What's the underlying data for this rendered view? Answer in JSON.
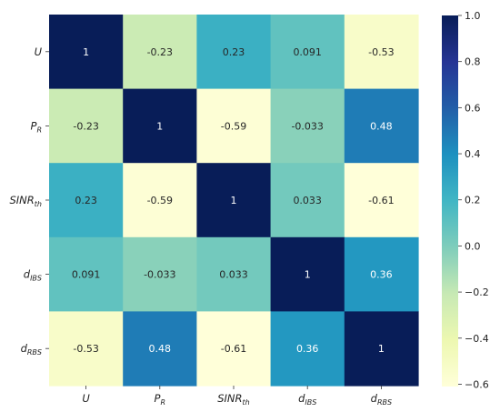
{
  "chart_data": {
    "type": "heatmap",
    "row_labels": [
      {
        "base": "U",
        "sub": ""
      },
      {
        "base": "P",
        "sub": "R"
      },
      {
        "base": "SINR",
        "sub": "th"
      },
      {
        "base": "d",
        "sub": "IBS"
      },
      {
        "base": "d",
        "sub": "RBS"
      }
    ],
    "col_labels": [
      {
        "base": "U",
        "sub": ""
      },
      {
        "base": "P",
        "sub": "R"
      },
      {
        "base": "SINR",
        "sub": "th"
      },
      {
        "base": "d",
        "sub": "IBS"
      },
      {
        "base": "d",
        "sub": "RBS"
      }
    ],
    "values": [
      [
        1,
        -0.23,
        0.23,
        0.091,
        -0.53
      ],
      [
        -0.23,
        1,
        -0.59,
        -0.033,
        0.48
      ],
      [
        0.23,
        -0.59,
        1,
        0.033,
        -0.61
      ],
      [
        0.091,
        -0.033,
        0.033,
        1,
        0.36
      ],
      [
        -0.53,
        0.48,
        -0.61,
        0.36,
        1
      ]
    ],
    "cell_text": [
      [
        "1",
        "-0.23",
        "0.23",
        "0.091",
        "-0.53"
      ],
      [
        "-0.23",
        "1",
        "-0.59",
        "-0.033",
        "0.48"
      ],
      [
        "0.23",
        "-0.59",
        "1",
        "0.033",
        "-0.61"
      ],
      [
        "0.091",
        "-0.033",
        "0.033",
        "1",
        "0.36"
      ],
      [
        "-0.53",
        "0.48",
        "-0.61",
        "0.36",
        "1"
      ]
    ],
    "colormap": "YlGnBu",
    "vmin": -0.61,
    "vmax": 1,
    "colorbar": {
      "ticks": [
        1.0,
        0.8,
        0.6,
        0.4,
        0.2,
        0.0,
        -0.2,
        -0.4,
        -0.6
      ],
      "tick_labels": [
        "1.0",
        "0.8",
        "0.6",
        "0.4",
        "0.2",
        "0.0",
        "−0.2",
        "−0.4",
        "−0.6"
      ]
    }
  },
  "colors": {
    "colormap_stops": [
      "#ffffd9",
      "#edf8b1",
      "#c7e9b4",
      "#7fcdbb",
      "#41b6c4",
      "#1d91c0",
      "#225ea8",
      "#253494",
      "#081d58"
    ],
    "text_dark": "#262626",
    "text_light": "#ffffff"
  }
}
